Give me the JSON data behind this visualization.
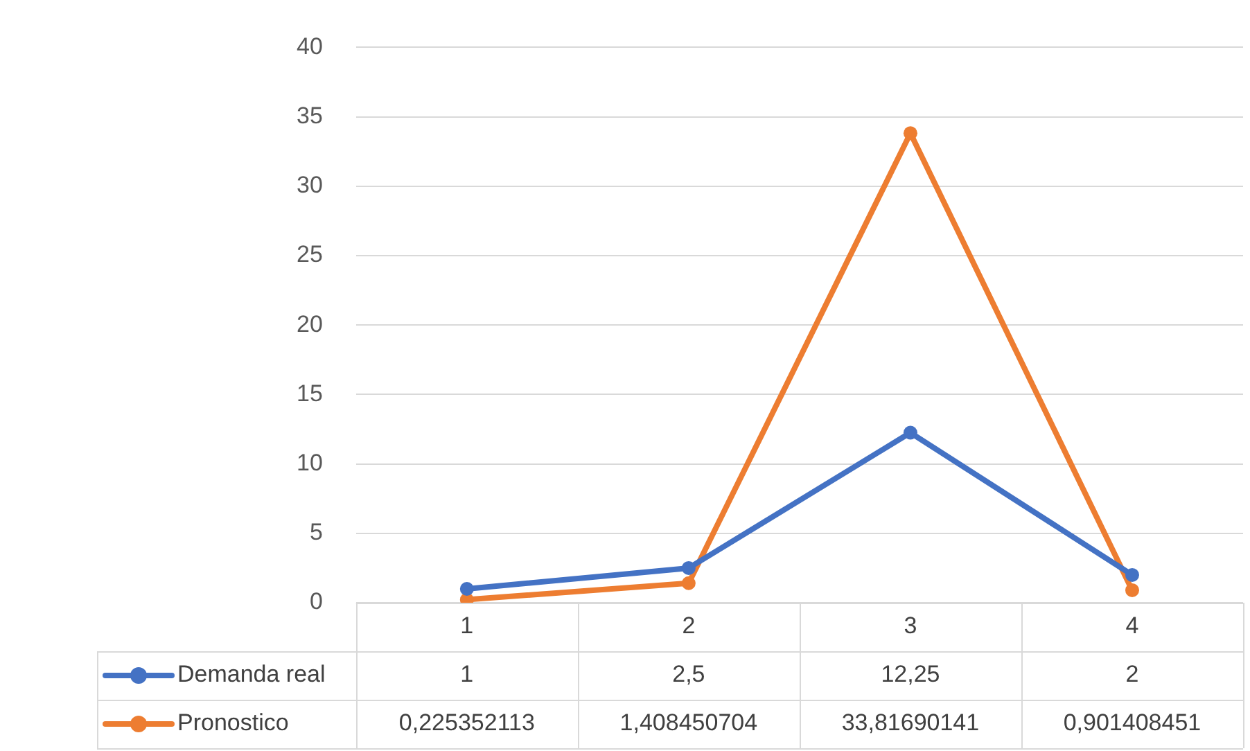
{
  "chart_data": {
    "type": "line",
    "categories": [
      "1",
      "2",
      "3",
      "4"
    ],
    "series": [
      {
        "name": "Demanda real",
        "color": "#4472c4",
        "values": [
          1,
          2.5,
          12.25,
          2
        ],
        "value_labels": [
          "1",
          "2,5",
          "12,25",
          "2"
        ]
      },
      {
        "name": "Pronostico",
        "color": "#ed7d31",
        "values": [
          0.225352113,
          1.408450704,
          33.81690141,
          0.901408451
        ],
        "value_labels": [
          "0,225352113",
          "1,408450704",
          "33,81690141",
          "0,901408451"
        ]
      }
    ],
    "ylim": [
      0,
      40
    ],
    "yticks": [
      0,
      5,
      10,
      15,
      20,
      25,
      30,
      35,
      40
    ],
    "grid": "y",
    "legend": "bottom",
    "marker": "circle",
    "line_style": "solid"
  }
}
